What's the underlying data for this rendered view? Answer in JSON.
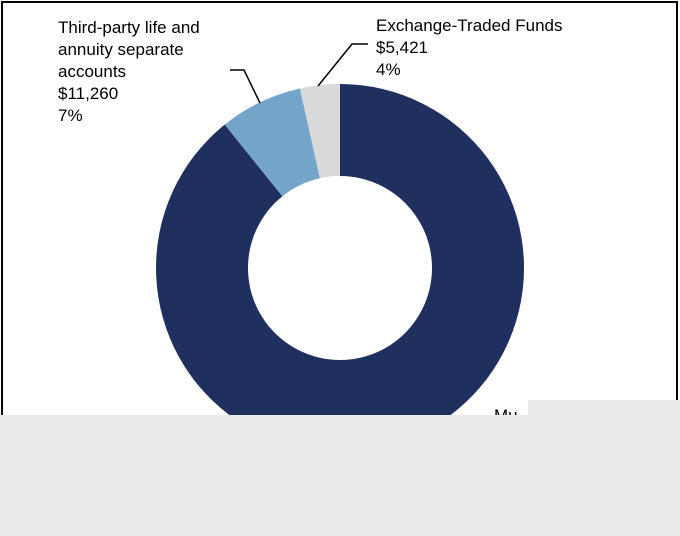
{
  "chart_data": {
    "type": "pie",
    "categories": [
      "Mu",
      "Third-party life and annuity separate accounts",
      "Exchange-Traded Funds"
    ],
    "values": [
      138000,
      11260,
      5421
    ],
    "value_labels": [
      null,
      "$11,260",
      "$5,421"
    ],
    "percent_labels": [
      null,
      "7%",
      "4%"
    ],
    "colors": [
      "#1f2f5e",
      "#74a5c8",
      "#d9d9d9"
    ],
    "donut": true
  }
}
